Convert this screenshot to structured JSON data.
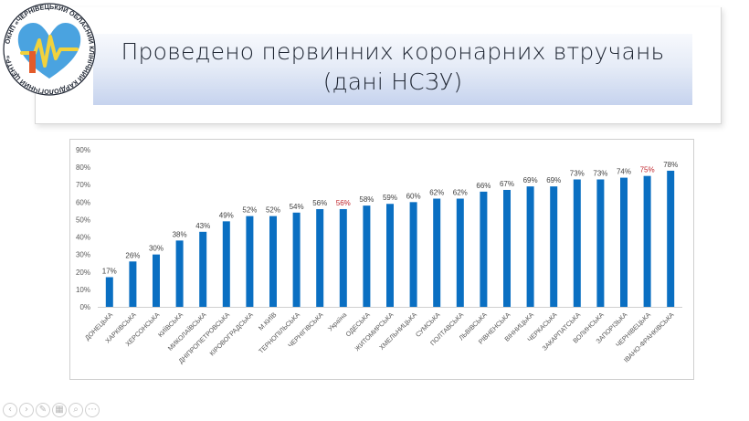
{
  "slide": {
    "title_line1": "Проведено первинних коронарних втручань",
    "title_line2": "(дані НСЗУ)"
  },
  "logo": {
    "ring_text": "ОКНП «ЧЕРНІВЕЦЬКИЙ ОБЛАСНИЙ КЛІНІЧНИЙ КАРДІОЛОГІЧНИЙ ЦЕНТР»",
    "colors": {
      "heart": "#4aa3e0",
      "pulse": "#f2d23c",
      "accent": "#e35b2a"
    }
  },
  "nav": {
    "buttons": [
      {
        "icon": "prev-icon",
        "glyph": "‹"
      },
      {
        "icon": "next-icon",
        "glyph": "›"
      },
      {
        "icon": "pen-icon",
        "glyph": "✎"
      },
      {
        "icon": "slides-icon",
        "glyph": "▦"
      },
      {
        "icon": "zoom-icon",
        "glyph": "⌕"
      },
      {
        "icon": "more-icon",
        "glyph": "⋯"
      }
    ]
  },
  "chart_data": {
    "type": "bar",
    "categories": [
      "ДОНЕЦЬКА",
      "ХАРКІВСЬКА",
      "ХЕРСОНСЬКА",
      "КИЇВСЬКА",
      "МИКОЛАЇВСЬКА",
      "ДНІПРОПЕТРОВСЬКА",
      "КІРОВОГРАДСЬКА",
      "М.КИЇВ",
      "ТЕРНОПІЛЬСЬКА",
      "ЧЕРНІГІВСЬКА",
      "Україна",
      "ОДЕСЬКА",
      "ЖИТОМИРСЬКА",
      "ХМЕЛЬНИЦЬКА",
      "СУМСЬКА",
      "ПОЛТАВСЬКА",
      "ЛЬВІВСЬКА",
      "РІВНЕНСЬКА",
      "ВІННИЦЬКА",
      "ЧЕРКАСЬКА",
      "ЗАКАРПАТСЬКА",
      "ВОЛИНСЬКА",
      "ЗАПОРІЗЬКА",
      "ЧЕРНІВЕЦЬКА",
      "ІВАНО-ФРАНКІВСЬКА"
    ],
    "values": [
      17,
      26,
      30,
      38,
      43,
      49,
      52,
      52,
      54,
      56,
      56,
      58,
      59,
      60,
      62,
      62,
      66,
      67,
      69,
      69,
      73,
      73,
      74,
      75,
      78
    ],
    "value_labels": [
      "17%",
      "26%",
      "30%",
      "38%",
      "43%",
      "49%",
      "52%",
      "52%",
      "54%",
      "56%",
      "56%",
      "58%",
      "59%",
      "60%",
      "62%",
      "62%",
      "66%",
      "67%",
      "69%",
      "69%",
      "73%",
      "73%",
      "74%",
      "75%",
      "78%"
    ],
    "highlighted_labels": [
      "Україна",
      "ЧЕРНІВЕЦЬКА"
    ],
    "yticks": [
      "0%",
      "10%",
      "20%",
      "30%",
      "40%",
      "50%",
      "60%",
      "70%",
      "80%",
      "90%"
    ],
    "ylim": [
      0,
      90
    ],
    "title": "",
    "xlabel": "",
    "ylabel": "",
    "legend": "none",
    "grid": false,
    "colors": {
      "bar": "#0a6fc2",
      "label": "#404040",
      "highlight": "#c0262d",
      "axis": "#d0d0d0",
      "tick": "#595959"
    }
  }
}
